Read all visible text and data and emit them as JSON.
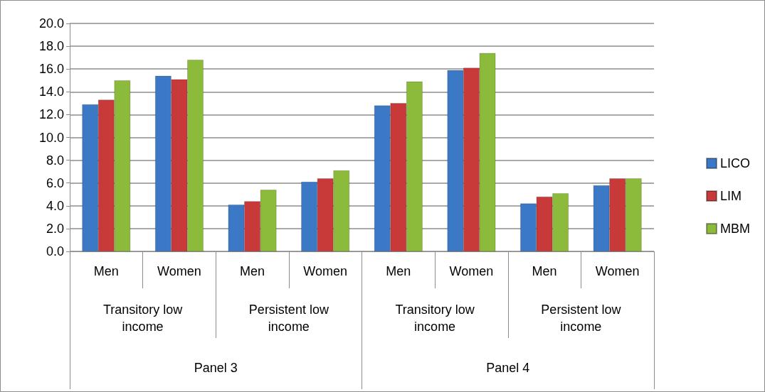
{
  "chart_data": {
    "type": "bar",
    "categories": [
      "Men",
      "Women",
      "Men",
      "Women",
      "Men",
      "Women",
      "Men",
      "Women"
    ],
    "series": [
      {
        "name": "LICO",
        "color": "#3b78c6",
        "values": [
          12.9,
          15.4,
          4.1,
          6.1,
          12.8,
          15.9,
          4.2,
          5.8
        ]
      },
      {
        "name": "LIM",
        "color": "#c8393a",
        "values": [
          13.3,
          15.1,
          4.4,
          6.4,
          13.0,
          16.1,
          4.8,
          6.4
        ]
      },
      {
        "name": "MBM",
        "color": "#8cba3a",
        "values": [
          15.0,
          16.8,
          5.4,
          7.1,
          14.9,
          17.4,
          5.1,
          6.4
        ]
      }
    ],
    "annotations": [
      "Transitory low income",
      "Persistent low income",
      "Transitory low income",
      "Persistent low income",
      "Panel 3",
      "Panel 4"
    ],
    "ylim": [
      0,
      20
    ],
    "yticks": [
      {
        "value": 0,
        "label": "0.0"
      },
      {
        "value": 2,
        "label": "2.0"
      },
      {
        "value": 4,
        "label": "4.0"
      },
      {
        "value": 6,
        "label": "6.0"
      },
      {
        "value": 8,
        "label": "8.0"
      },
      {
        "value": 10,
        "label": "10.0"
      },
      {
        "value": 12,
        "label": "12.0"
      },
      {
        "value": 14,
        "label": "14.0"
      },
      {
        "value": 16,
        "label": "16.0"
      },
      {
        "value": 18,
        "label": "18.0"
      },
      {
        "value": 20,
        "label": "20.0"
      }
    ],
    "grid": "y",
    "legend": "right"
  }
}
